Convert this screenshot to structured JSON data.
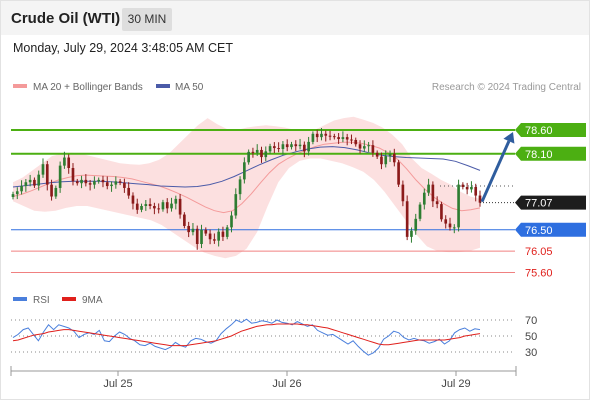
{
  "header": {
    "title": "Crude Oil (WTI)",
    "timeframe": "30 MIN",
    "datetime": "Monday, July 29, 2024 3:48:05 AM CET"
  },
  "colors": {
    "up_candle": "#2e7d32",
    "down_candle": "#8b1a1a",
    "resistance": "#4caf12",
    "pivot": "#2e6fe0",
    "support": "#f08080",
    "ma20": "#f49a9a",
    "ma50": "#4b5ba8",
    "bollinger_fill": "#fbd5d5",
    "arrow": "#2f5d9e",
    "rsi": "#4a7fdc",
    "rsi_ma": "#e0201c"
  },
  "chart_data": [
    {
      "type": "candlestick",
      "title": "Crude Oil (WTI)",
      "legend": [
        {
          "label": "MA 20 + Bollinger Bands",
          "color": "#f49a9a"
        },
        {
          "label": "MA 50",
          "color": "#4b5ba8"
        }
      ],
      "watermark": "Research © 2024 Trading Central",
      "x_labels": [
        "Jul 25",
        "Jul 26",
        "Jul 29"
      ],
      "ylim": [
        75.4,
        78.9
      ],
      "grid": false,
      "levels": [
        {
          "value": 78.6,
          "label": "78.60",
          "kind": "resistance"
        },
        {
          "value": 78.1,
          "label": "78.10",
          "kind": "resistance"
        },
        {
          "value": 76.5,
          "label": "76.50",
          "kind": "pivot"
        },
        {
          "value": 76.05,
          "label": "76.05",
          "kind": "support"
        },
        {
          "value": 75.6,
          "label": "75.60",
          "kind": "support"
        }
      ],
      "last_price": {
        "value": 77.07,
        "label": "77.07"
      },
      "target_arrow": {
        "from": 77.07,
        "to": 78.6
      },
      "candles_close": [
        77.25,
        77.31,
        77.42,
        77.5,
        77.55,
        77.43,
        77.66,
        77.88,
        77.45,
        77.2,
        77.38,
        77.85,
        78.02,
        77.8,
        77.52,
        77.48,
        77.55,
        77.48,
        77.45,
        77.52,
        77.55,
        77.5,
        77.42,
        77.45,
        77.52,
        77.49,
        77.38,
        77.22,
        77.05,
        76.92,
        77.0,
        77.04,
        77.0,
        76.95,
        76.93,
        77.08,
        76.95,
        77.05,
        77.15,
        76.82,
        76.58,
        76.45,
        76.52,
        76.2,
        76.5,
        76.42,
        76.3,
        76.27,
        76.46,
        76.35,
        76.55,
        76.8,
        77.25,
        77.56,
        77.92,
        78.14,
        78.12,
        78.18,
        78.03,
        78.15,
        78.26,
        78.22,
        78.2,
        78.3,
        78.24,
        78.3,
        78.26,
        78.29,
        78.15,
        78.35,
        78.52,
        78.45,
        78.52,
        78.48,
        78.47,
        78.45,
        78.41,
        78.45,
        78.4,
        78.39,
        78.3,
        78.21,
        78.26,
        78.28,
        78.12,
        78.04,
        77.88,
        78.05,
        78.1,
        77.92,
        77.45,
        77.1,
        76.35,
        76.48,
        76.73,
        77.03,
        77.28,
        77.45,
        77.1,
        77.04,
        76.72,
        76.63,
        76.55,
        76.55,
        77.45,
        77.4,
        77.35,
        77.4,
        77.22,
        77.07
      ],
      "ma20": [
        77.2,
        77.25,
        77.32,
        77.4,
        77.48,
        77.55,
        77.6,
        77.64,
        77.65,
        77.64,
        77.63,
        77.62,
        77.6,
        77.57,
        77.52,
        77.47,
        77.42,
        77.35,
        77.27,
        77.18,
        77.08,
        76.98,
        76.9,
        76.86,
        76.9,
        77.05,
        77.25,
        77.48,
        77.7,
        77.88,
        78.0,
        78.1,
        78.18,
        78.25,
        78.3,
        78.32,
        78.34,
        78.34,
        78.32,
        78.28,
        78.22,
        78.12,
        77.98,
        77.78,
        77.55,
        77.35,
        77.18,
        77.05,
        76.95,
        76.9,
        76.92,
        76.96
      ],
      "ma50": [
        77.4,
        77.43,
        77.46,
        77.49,
        77.51,
        77.52,
        77.52,
        77.52,
        77.51,
        77.49,
        77.47,
        77.45,
        77.42,
        77.41,
        77.4,
        77.41,
        77.45,
        77.52,
        77.62,
        77.74,
        77.86,
        77.97,
        78.07,
        78.14,
        78.2,
        78.24,
        78.25,
        78.23,
        78.18,
        78.12,
        78.07,
        78.04,
        78.02,
        78.01,
        78.0,
        77.99,
        77.94,
        77.85,
        77.75
      ],
      "bollinger_upper": [
        77.5,
        77.6,
        77.75,
        77.9,
        78.05,
        78.1,
        78.12,
        78.1,
        78.05,
        78.0,
        77.95,
        77.9,
        77.88,
        77.87,
        77.9,
        77.97,
        78.1,
        78.3,
        78.5,
        78.7,
        78.85,
        78.72,
        78.62,
        78.6,
        78.65,
        78.68,
        78.7,
        78.68,
        78.65,
        78.6,
        78.58,
        78.6,
        78.7,
        78.8,
        78.85,
        78.88,
        78.82,
        78.75,
        78.65,
        78.5,
        78.3,
        78.0,
        77.8,
        77.68,
        77.55,
        77.45,
        77.3,
        77.2,
        77.15
      ],
      "bollinger_lower": [
        77.1,
        77.0,
        76.9,
        76.88,
        76.9,
        76.96,
        77.0,
        77.0,
        76.95,
        76.9,
        76.85,
        76.8,
        76.75,
        76.7,
        76.6,
        76.45,
        76.3,
        76.15,
        76.02,
        75.95,
        75.9,
        75.95,
        76.1,
        76.45,
        77.0,
        77.5,
        77.8,
        77.95,
        78.0,
        78.0,
        77.95,
        77.9,
        77.82,
        77.72,
        77.55,
        77.3,
        77.0,
        76.7,
        76.4,
        76.15,
        76.05,
        76.03,
        76.03,
        76.05,
        76.12
      ],
      "series": [
        {
          "name": "MA 20 + Bollinger Bands"
        },
        {
          "name": "MA 50"
        }
      ]
    },
    {
      "type": "line",
      "title": "",
      "legend": [
        {
          "label": "RSI",
          "color": "#4a7fdc"
        },
        {
          "label": "9MA",
          "color": "#e0201c"
        }
      ],
      "y_ticks": [
        70,
        50,
        30
      ],
      "ylim": [
        10,
        90
      ],
      "series": [
        {
          "name": "RSI",
          "values": [
            48,
            52,
            58,
            60,
            52,
            44,
            55,
            64,
            58,
            64,
            62,
            60,
            56,
            48,
            52,
            54,
            52,
            57,
            44,
            43,
            50,
            55,
            52,
            47,
            44,
            39,
            38,
            41,
            37,
            35,
            33,
            36,
            42,
            38,
            36,
            44,
            47,
            46,
            43,
            41,
            44,
            53,
            59,
            64,
            70,
            67,
            71,
            66,
            67,
            69,
            68,
            66,
            70,
            67,
            66,
            64,
            68,
            65,
            62,
            64,
            57,
            54,
            51,
            52,
            48,
            44,
            40,
            44,
            37,
            31,
            26,
            29,
            35,
            46,
            50,
            56,
            54,
            48,
            45,
            47,
            45,
            44,
            41,
            43,
            46,
            40,
            44,
            54,
            58,
            60,
            56,
            59,
            58
          ]
        },
        {
          "name": "9MA",
          "values": [
            44,
            45,
            47,
            49,
            51,
            52,
            53,
            55,
            56,
            57,
            58,
            58,
            57,
            56,
            55,
            54,
            53,
            52,
            51,
            50,
            49,
            48,
            47,
            46,
            45,
            44,
            43,
            42,
            41,
            40,
            39,
            38,
            38,
            38,
            38,
            39,
            40,
            41,
            42,
            43,
            44,
            46,
            48,
            50,
            53,
            56,
            58,
            60,
            62,
            63,
            64,
            64,
            65,
            65,
            65,
            65,
            65,
            64,
            64,
            63,
            62,
            61,
            60,
            58,
            56,
            54,
            52,
            50,
            48,
            46,
            44,
            42,
            40,
            39,
            39,
            40,
            41,
            42,
            43,
            44,
            45,
            45,
            45,
            45,
            45,
            45,
            46,
            47,
            48,
            50,
            51,
            52,
            53
          ]
        }
      ]
    }
  ]
}
